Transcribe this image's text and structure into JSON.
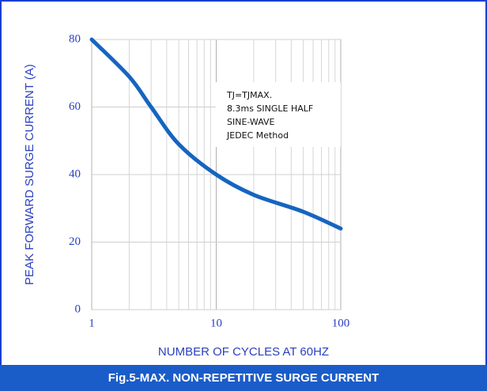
{
  "chart_data": {
    "type": "line",
    "title": "Fig.5-MAX. NON-REPETITIVE SURGE CURRENT",
    "x_label": "NUMBER OF CYCLES AT 60HZ",
    "y_label": "PEAK FORWARD SURGE CURRENT (A)",
    "annotation": [
      "TJ=TJMAX.",
      "8.3ms SINGLE HALF",
      "SINE-WAVE",
      "JEDEC Method"
    ],
    "x": [
      1,
      2,
      3,
      5,
      10,
      20,
      50,
      100
    ],
    "series": [
      {
        "color": "#1565c0",
        "values": [
          80,
          69,
          60,
          49,
          40,
          34,
          29,
          24
        ]
      }
    ],
    "x_log": true,
    "xlim": [
      1,
      100
    ],
    "xticks": [
      1,
      10,
      100
    ],
    "x_minor_ticks": [
      2,
      3,
      4,
      5,
      6,
      7,
      8,
      9,
      20,
      30,
      40,
      50,
      60,
      70,
      80,
      90
    ],
    "ylim": [
      0,
      80
    ],
    "yticks": [
      0,
      20,
      40,
      60,
      80
    ],
    "grid": true
  }
}
